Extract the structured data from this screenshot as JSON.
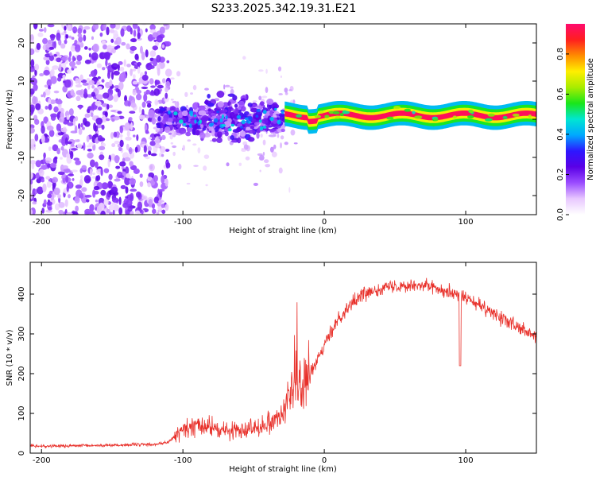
{
  "chart_data": [
    {
      "type": "heatmap",
      "title": "S233.2025.342.19.31.E21",
      "xlabel": "Height of straight line (km)",
      "ylabel": "Frequency (Hz)",
      "xlim": [
        -208,
        150
      ],
      "ylim": [
        -25,
        25
      ],
      "xticks": [
        -200,
        -100,
        0,
        100
      ],
      "yticks": [
        20,
        10,
        0,
        -10,
        -20
      ],
      "colorbar": {
        "label": "Normalized spectral amplitude",
        "range": [
          0,
          0.95
        ],
        "ticks": [
          0.0,
          0.2,
          0.4,
          0.6,
          0.8
        ],
        "colormap": [
          "#ffffff",
          "#e8c8ff",
          "#9b4dff",
          "#5a00e6",
          "#2d17ff",
          "#00a8ff",
          "#00e6d2",
          "#19e61a",
          "#a8ec00",
          "#ffef00",
          "#ff8c00",
          "#ff1f1f",
          "#ff0a6e"
        ]
      },
      "features": {
        "scattered_noise_x_range": [
          -208,
          -110
        ],
        "energy_cluster_x_range": [
          -118,
          -28
        ],
        "dominant_band_x_range": [
          -28,
          150
        ],
        "dominant_band_frequency_hz": 1,
        "dominant_band_peak_amplitude": 0.95
      }
    },
    {
      "type": "line",
      "xlabel": "Height of straight line (km)",
      "ylabel": "SNR (10 * v/v)",
      "xlim": [
        -208,
        150
      ],
      "ylim": [
        0,
        480
      ],
      "xticks": [
        -200,
        -100,
        0,
        100
      ],
      "yticks": [
        0,
        100,
        200,
        300,
        400
      ],
      "series": [
        {
          "name": "SNR",
          "color": "#e8302a",
          "x": [
            -208,
            -180,
            -150,
            -120,
            -110,
            -100,
            -90,
            -80,
            -70,
            -60,
            -50,
            -40,
            -30,
            -25,
            -20,
            -15,
            -10,
            -5,
            0,
            5,
            10,
            20,
            30,
            40,
            50,
            60,
            70,
            80,
            90,
            100,
            110,
            120,
            130,
            140,
            150
          ],
          "values": [
            18,
            18,
            20,
            22,
            28,
            60,
            70,
            65,
            55,
            60,
            65,
            75,
            100,
            140,
            170,
            180,
            200,
            230,
            270,
            305,
            340,
            380,
            405,
            415,
            420,
            425,
            422,
            415,
            405,
            390,
            370,
            350,
            330,
            310,
            290
          ]
        }
      ]
    }
  ]
}
